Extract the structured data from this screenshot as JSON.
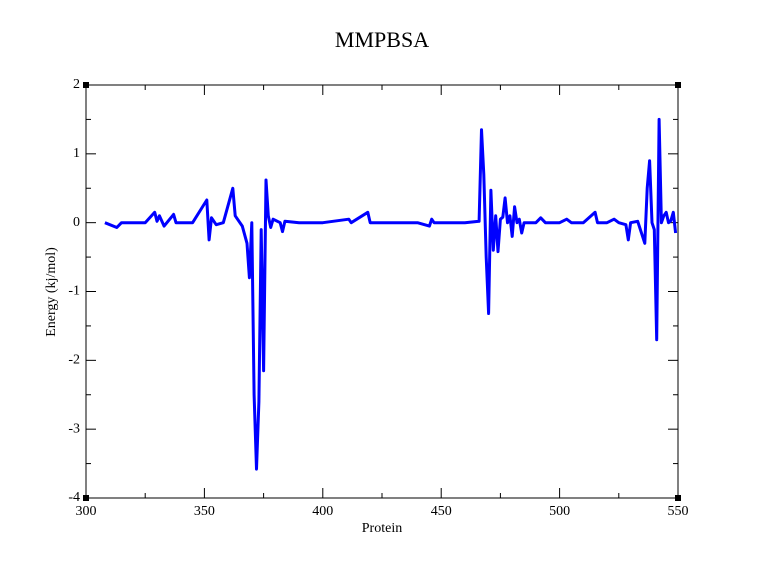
{
  "chart_data": {
    "type": "line",
    "title": "MMPBSA",
    "x_label": "Protein",
    "y_label": "Energy (kj/mol)",
    "series": [
      {
        "name": "MMPBSA",
        "color": "#0000ff",
        "x": [
          308,
          313,
          315,
          320,
          325,
          329,
          330,
          331,
          333,
          337,
          338,
          345,
          351,
          352,
          353,
          355,
          358,
          362,
          363,
          366,
          368,
          369,
          370,
          371,
          372,
          373,
          374,
          375,
          376,
          377,
          378,
          379,
          382,
          383,
          384,
          390,
          400,
          411,
          412,
          419,
          420,
          430,
          440,
          445,
          446,
          447,
          460,
          466,
          467,
          468,
          469,
          470,
          471,
          472,
          473,
          474,
          475,
          476,
          477,
          478,
          479,
          480,
          481,
          482,
          483,
          484,
          485,
          490,
          492,
          494,
          500,
          503,
          505,
          510,
          515,
          516,
          520,
          523,
          525,
          528,
          529,
          530,
          533,
          536,
          537,
          538,
          539,
          540,
          541,
          542,
          543,
          544,
          545,
          546,
          547,
          548,
          549
        ],
        "values": [
          0,
          -0.07,
          0,
          0,
          0,
          0.15,
          0.02,
          0.1,
          -0.05,
          0.12,
          0,
          0,
          0.33,
          -0.25,
          0.07,
          -0.03,
          0,
          0.5,
          0.1,
          -0.05,
          -0.3,
          -0.8,
          0,
          -2.5,
          -3.58,
          -2.6,
          -0.1,
          -2.15,
          0.62,
          0.1,
          -0.07,
          0.05,
          0,
          -0.13,
          0.02,
          0,
          0,
          0.05,
          0,
          0.15,
          0,
          0,
          0,
          -0.05,
          0.05,
          0,
          0,
          0.02,
          1.35,
          0.7,
          -0.5,
          -1.32,
          0.47,
          -0.4,
          0.1,
          -0.42,
          0.05,
          0.08,
          0.36,
          0,
          0.1,
          -0.2,
          0.23,
          0,
          0.05,
          -0.15,
          0,
          0,
          0.07,
          0,
          0,
          0.05,
          0,
          0,
          0.15,
          0,
          0,
          0.05,
          0,
          -0.03,
          -0.25,
          0,
          0.02,
          -0.3,
          0.5,
          0.9,
          0,
          -0.1,
          -1.7,
          1.5,
          0,
          0.1,
          0.15,
          0,
          0.03,
          0.15,
          -0.15
        ]
      }
    ],
    "xlim": [
      300,
      550
    ],
    "xticks": [
      300,
      350,
      400,
      450,
      500,
      550
    ],
    "ylim": [
      -4,
      2
    ],
    "yticks": [
      -4,
      -3,
      -2,
      -1,
      0,
      1,
      2
    ]
  }
}
